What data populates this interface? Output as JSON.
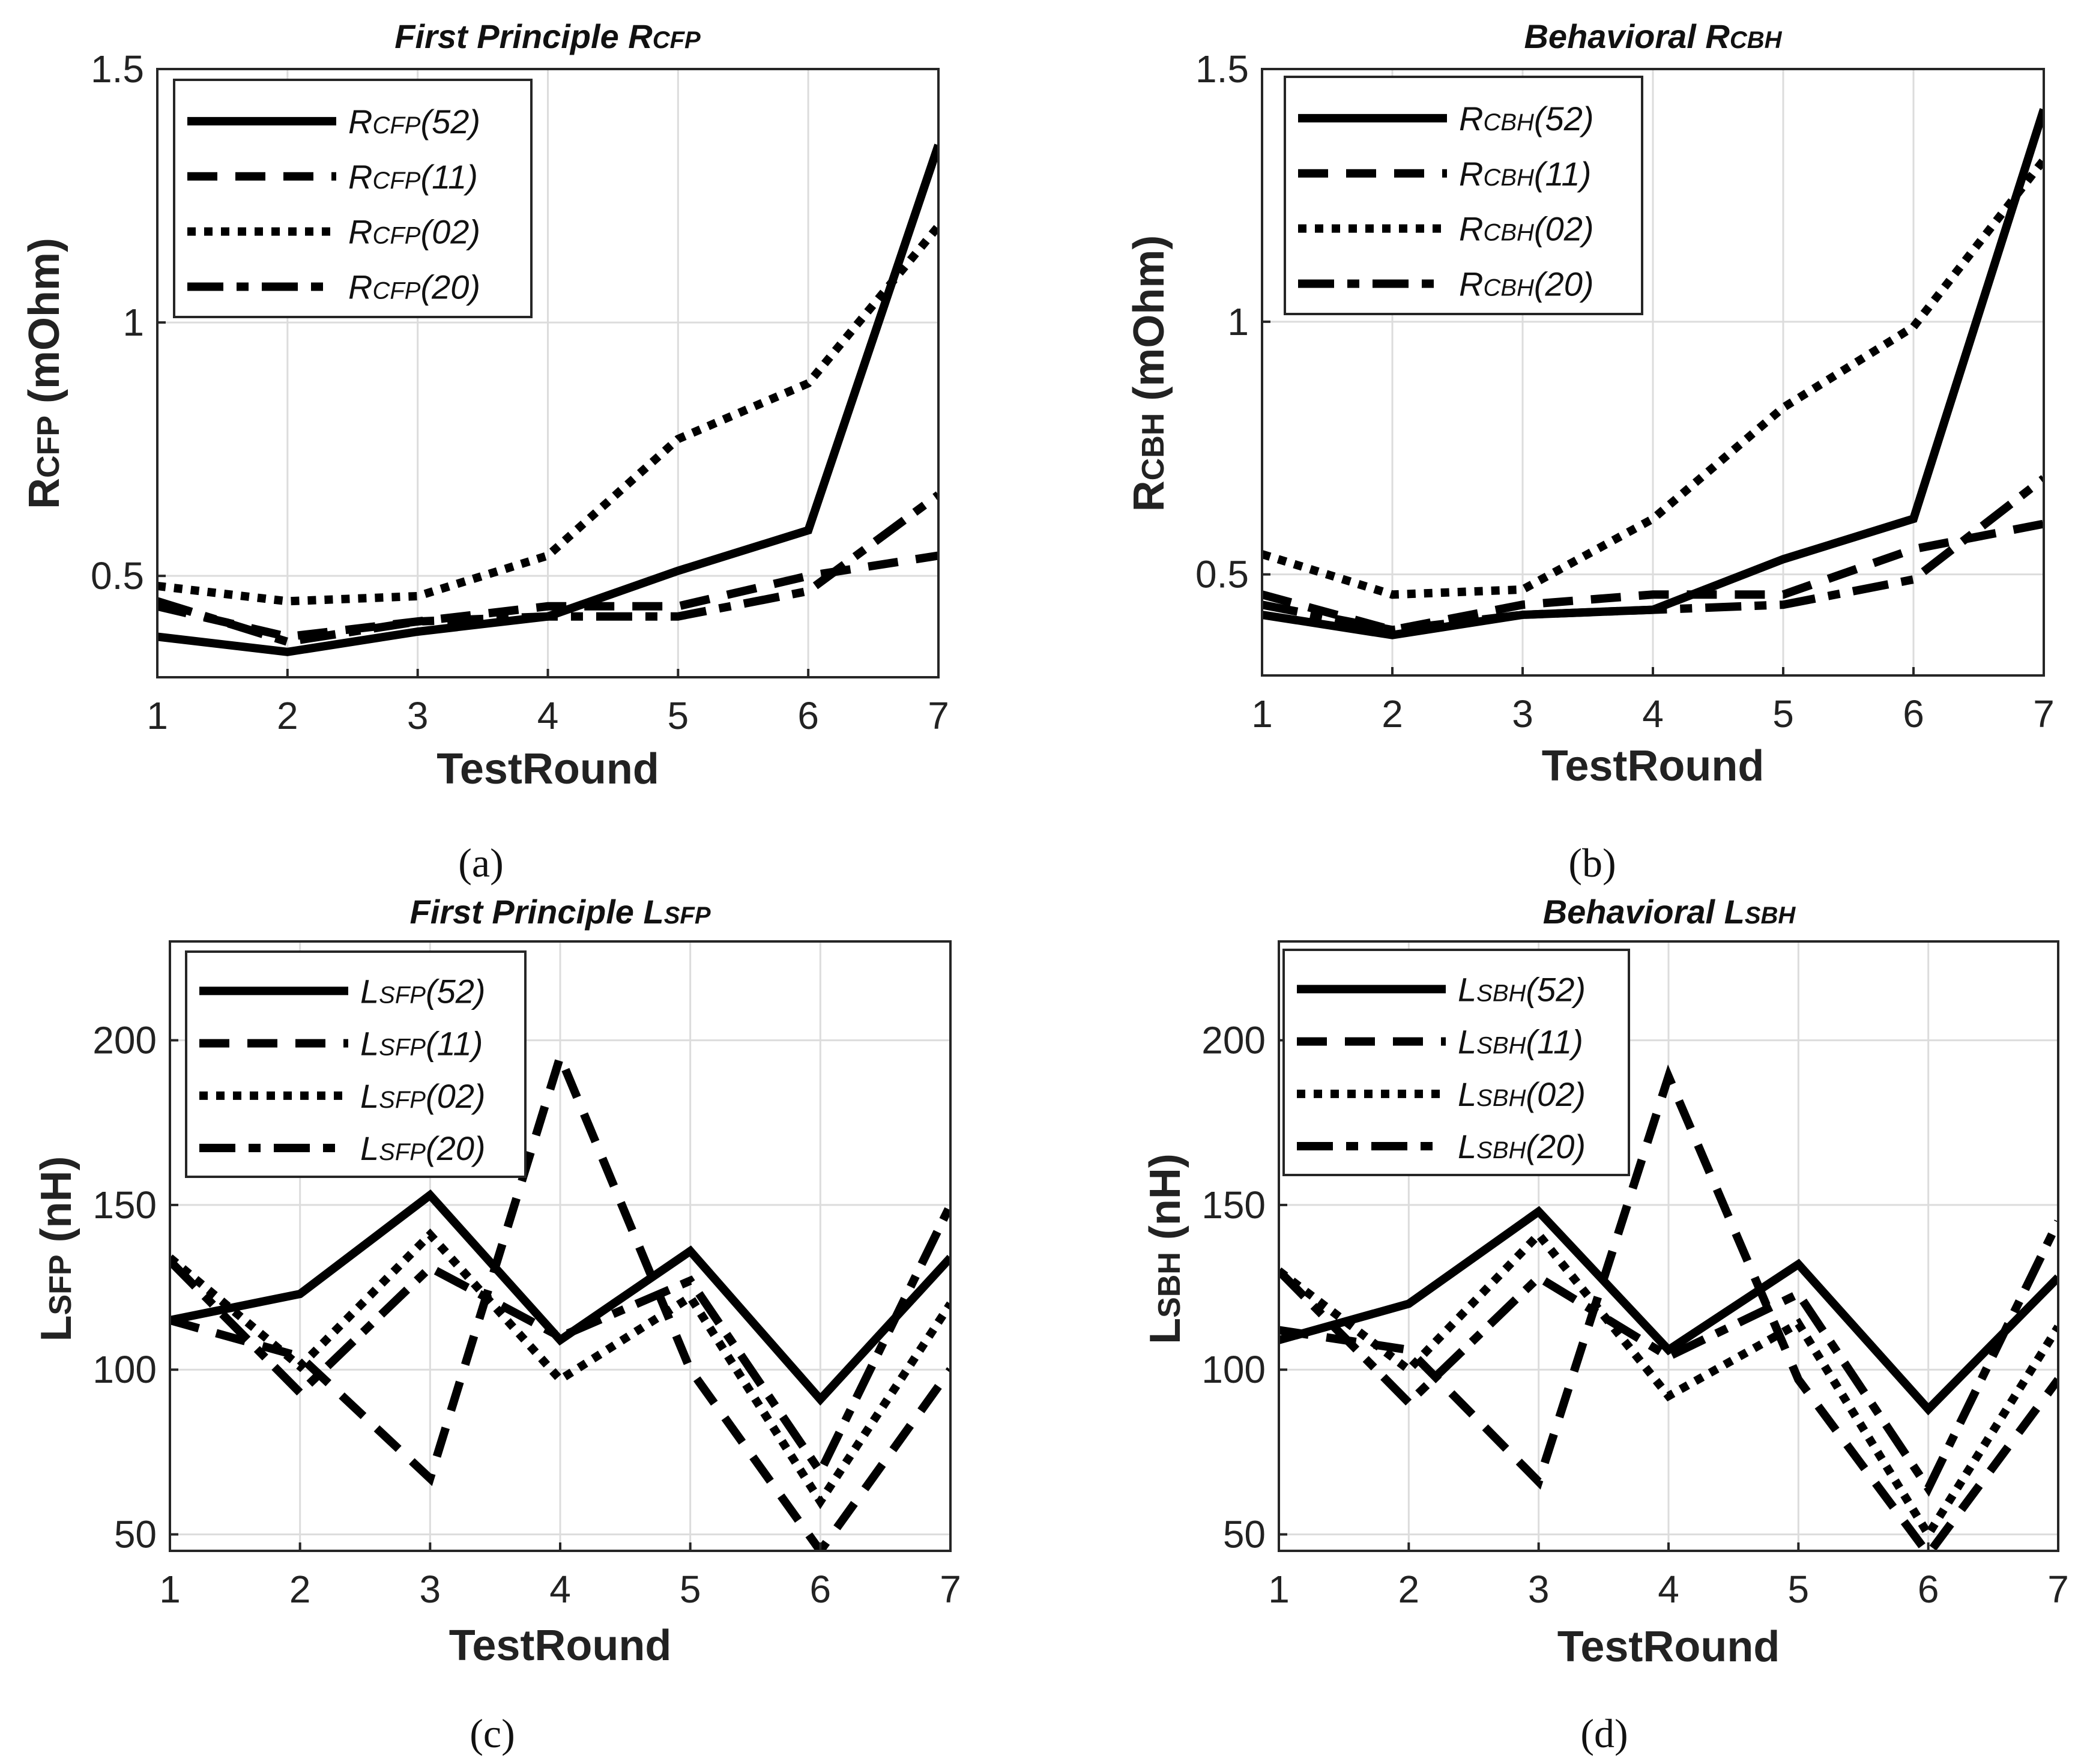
{
  "styles": {
    "solid": "",
    "dashed": "50,30",
    "dotted": "14,14",
    "dashdot": "60,22,20,22"
  },
  "chart_data": [
    {
      "id": "a",
      "type": "line",
      "title": "First Principle R",
      "title_sub": "CFP",
      "caption": "(a)",
      "xlabel": "TestRound",
      "ylabel_main": "R",
      "ylabel_sub": "CFP",
      "ylabel_unit": " (mOhm)",
      "x": [
        1,
        2,
        3,
        4,
        5,
        6,
        7
      ],
      "xlim": [
        1,
        7
      ],
      "ylim": [
        0.3,
        1.5
      ],
      "yticks": [
        0.5,
        1,
        1.5
      ],
      "ytick_labels": [
        "0.5",
        "1",
        "1.5"
      ],
      "xticks": [
        1,
        2,
        3,
        4,
        5,
        6,
        7
      ],
      "xtick_labels": [
        "1",
        "2",
        "3",
        "4",
        "5",
        "6",
        "7"
      ],
      "legend_position": "top-left",
      "series": [
        {
          "name": "R",
          "sub": "CFP",
          "suffix": "(52)",
          "style": "solid",
          "values": [
            0.38,
            0.35,
            0.39,
            0.42,
            0.51,
            0.59,
            1.35
          ]
        },
        {
          "name": "R",
          "sub": "CFP",
          "suffix": "(11)",
          "style": "dashed",
          "values": [
            0.44,
            0.38,
            0.41,
            0.44,
            0.44,
            0.5,
            0.54
          ]
        },
        {
          "name": "R",
          "sub": "CFP",
          "suffix": "(02)",
          "style": "dotted",
          "values": [
            0.48,
            0.45,
            0.46,
            0.54,
            0.77,
            0.88,
            1.19
          ]
        },
        {
          "name": "R",
          "sub": "CFP",
          "suffix": "(20)",
          "style": "dashdot",
          "values": [
            0.45,
            0.37,
            0.41,
            0.42,
            0.42,
            0.47,
            0.66
          ]
        }
      ]
    },
    {
      "id": "b",
      "type": "line",
      "title": "Behavioral R",
      "title_sub": "CBH",
      "caption": "(b)",
      "xlabel": "TestRound",
      "ylabel_main": "R",
      "ylabel_sub": "CBH",
      "ylabel_unit": " (mOhm)",
      "x": [
        1,
        2,
        3,
        4,
        5,
        6,
        7
      ],
      "xlim": [
        1,
        7
      ],
      "ylim": [
        0.3,
        1.5
      ],
      "yticks": [
        0.5,
        1,
        1.5
      ],
      "ytick_labels": [
        "0.5",
        "1",
        "1.5"
      ],
      "xticks": [
        1,
        2,
        3,
        4,
        5,
        6,
        7
      ],
      "xtick_labels": [
        "1",
        "2",
        "3",
        "4",
        "5",
        "6",
        "7"
      ],
      "legend_position": "top-left",
      "series": [
        {
          "name": "R",
          "sub": "CBH",
          "suffix": "(52)",
          "style": "solid",
          "values": [
            0.42,
            0.38,
            0.42,
            0.43,
            0.53,
            0.61,
            1.42
          ]
        },
        {
          "name": "R",
          "sub": "CBH",
          "suffix": "(11)",
          "style": "dashed",
          "values": [
            0.46,
            0.39,
            0.44,
            0.46,
            0.46,
            0.55,
            0.6
          ]
        },
        {
          "name": "R",
          "sub": "CBH",
          "suffix": "(02)",
          "style": "dotted",
          "values": [
            0.54,
            0.46,
            0.47,
            0.61,
            0.83,
            0.99,
            1.32
          ]
        },
        {
          "name": "R",
          "sub": "CBH",
          "suffix": "(20)",
          "style": "dashdot",
          "values": [
            0.44,
            0.39,
            0.42,
            0.43,
            0.44,
            0.49,
            0.69
          ]
        }
      ]
    },
    {
      "id": "c",
      "type": "line",
      "title": "First Principle L",
      "title_sub": "SFP",
      "caption": "(c)",
      "xlabel": "TestRound",
      "ylabel_main": "L",
      "ylabel_sub": "SFP",
      "ylabel_unit": " (nH)",
      "x": [
        1,
        2,
        3,
        4,
        5,
        6,
        7
      ],
      "xlim": [
        1,
        7
      ],
      "ylim": [
        45,
        230
      ],
      "yticks": [
        50,
        100,
        150,
        200
      ],
      "ytick_labels": [
        "50",
        "100",
        "150",
        "200"
      ],
      "xticks": [
        1,
        2,
        3,
        4,
        5,
        6,
        7
      ],
      "xtick_labels": [
        "1",
        "2",
        "3",
        "4",
        "5",
        "6",
        "7"
      ],
      "legend_position": "top-left",
      "series": [
        {
          "name": "L",
          "sub": "SFP",
          "suffix": "(52)",
          "style": "solid",
          "values": [
            115,
            123,
            153,
            109,
            136,
            91,
            134
          ]
        },
        {
          "name": "L",
          "sub": "SFP",
          "suffix": "(11)",
          "style": "dashed",
          "values": [
            115,
            104,
            67,
            195,
            100,
            45,
            100
          ]
        },
        {
          "name": "L",
          "sub": "SFP",
          "suffix": "(02)",
          "style": "dotted",
          "values": [
            134,
            101,
            141,
            97,
            122,
            60,
            120
          ]
        },
        {
          "name": "L",
          "sub": "SFP",
          "suffix": "(20)",
          "style": "dashdot",
          "values": [
            133,
            93,
            131,
            110,
            127,
            69,
            150
          ]
        }
      ]
    },
    {
      "id": "d",
      "type": "line",
      "title": "Behavioral L",
      "title_sub": "SBH",
      "caption": "(d)",
      "xlabel": "TestRound",
      "ylabel_main": "L",
      "ylabel_sub": "SBH",
      "ylabel_unit": " (nH)",
      "x": [
        1,
        2,
        3,
        4,
        5,
        6,
        7
      ],
      "xlim": [
        1,
        7
      ],
      "ylim": [
        45,
        230
      ],
      "yticks": [
        50,
        100,
        150,
        200
      ],
      "ytick_labels": [
        "50",
        "100",
        "150",
        "200"
      ],
      "xticks": [
        1,
        2,
        3,
        4,
        5,
        6,
        7
      ],
      "xtick_labels": [
        "1",
        "2",
        "3",
        "4",
        "5",
        "6",
        "7"
      ],
      "legend_position": "top-left",
      "series": [
        {
          "name": "L",
          "sub": "SBH",
          "suffix": "(52)",
          "style": "solid",
          "values": [
            109,
            120,
            148,
            106,
            132,
            88,
            128
          ]
        },
        {
          "name": "L",
          "sub": "SBH",
          "suffix": "(11)",
          "style": "dashed",
          "values": [
            112,
            106,
            66,
            189,
            97,
            44,
            97
          ]
        },
        {
          "name": "L",
          "sub": "SBH",
          "suffix": "(02)",
          "style": "dotted",
          "values": [
            130,
            100,
            141,
            92,
            114,
            50,
            113
          ]
        },
        {
          "name": "L",
          "sub": "SBH",
          "suffix": "(20)",
          "style": "dashdot",
          "values": [
            130,
            90,
            128,
            104,
            123,
            64,
            145
          ]
        }
      ]
    }
  ]
}
